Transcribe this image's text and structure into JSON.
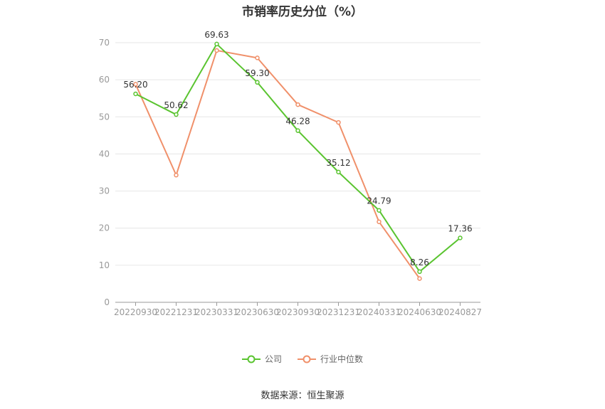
{
  "chart_data": {
    "type": "line",
    "title": "市销率历史分位（%）",
    "categories": [
      "20220930",
      "20221231",
      "20230331",
      "20230630",
      "20230930",
      "20231231",
      "20240331",
      "20240630",
      "20240827"
    ],
    "series": [
      {
        "name": "公司",
        "color": "#5ac430",
        "values": [
          56.2,
          50.62,
          69.63,
          59.3,
          46.28,
          35.12,
          24.79,
          8.26,
          17.36
        ],
        "labels": [
          "56.20",
          "50.62",
          "69.63",
          "59.30",
          "46.28",
          "35.12",
          "24.79",
          "8.26",
          "17.36"
        ]
      },
      {
        "name": "行业中位数",
        "color": "#f0906a",
        "values": [
          58.8,
          34.3,
          67.9,
          65.9,
          53.3,
          48.5,
          21.7,
          6.4,
          null
        ]
      }
    ],
    "ylim": [
      0,
      70
    ],
    "yticks": [
      0,
      10,
      20,
      30,
      40,
      50,
      60,
      70
    ],
    "grid": true,
    "legend_position": "bottom"
  },
  "source": "数据来源：恒生聚源"
}
